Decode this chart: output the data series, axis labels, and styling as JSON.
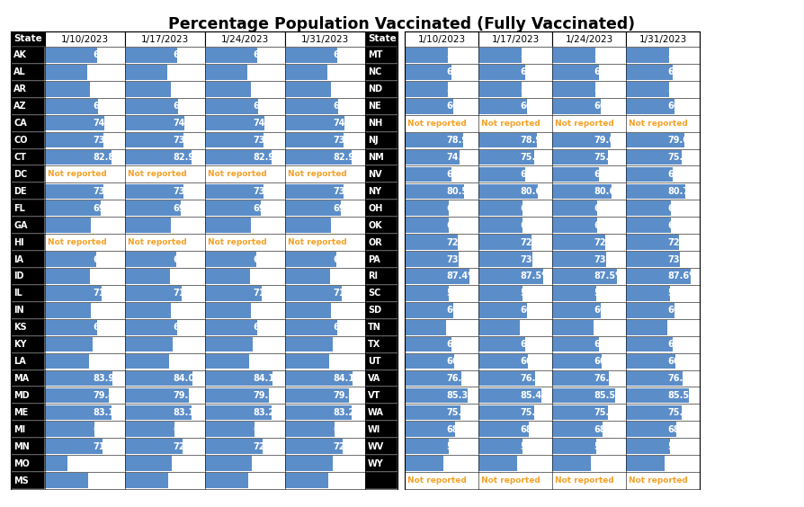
{
  "title": "Percentage Population Vaccinated (Fully Vaccinated)",
  "columns": [
    "1/10/2023",
    "1/17/2023",
    "1/24/2023",
    "1/31/2023"
  ],
  "left_states": [
    "AK",
    "AL",
    "AR",
    "AZ",
    "CA",
    "CO",
    "CT",
    "DC",
    "DE",
    "FL",
    "GA",
    "HI",
    "IA",
    "ID",
    "IL",
    "IN",
    "KS",
    "KY",
    "LA",
    "MA",
    "MD",
    "ME",
    "MI",
    "MN",
    "MO",
    "MS"
  ],
  "right_states": [
    "MT",
    "NC",
    "ND",
    "NE",
    "NH",
    "NJ",
    "NM",
    "NV",
    "NY",
    "OH",
    "OK",
    "OR",
    "PA",
    "RI",
    "SC",
    "SD",
    "TN",
    "TX",
    "UT",
    "VA",
    "VT",
    "WA",
    "WI",
    "WV",
    "WY",
    ""
  ],
  "left_data": [
    [
      65.0,
      65.0,
      65.0,
      65.1
    ],
    [
      53.0,
      53.1,
      53.1,
      53.1
    ],
    [
      56.7,
      56.8,
      56.8,
      56.8
    ],
    [
      65.8,
      65.9,
      65.9,
      65.9
    ],
    [
      74.4,
      74.5,
      74.5,
      74.6
    ],
    [
      73.2,
      73.3,
      73.3,
      73.4
    ],
    [
      82.8,
      82.9,
      82.9,
      82.9
    ],
    [
      null,
      null,
      null,
      null
    ],
    [
      73.1,
      73.1,
      73.2,
      73.2
    ],
    [
      69.2,
      69.3,
      69.3,
      69.3
    ],
    [
      57.1,
      57.1,
      57.2,
      57.2
    ],
    [
      null,
      null,
      null,
      null
    ],
    [
      64.2,
      64.2,
      64.3,
      64.3
    ],
    [
      56.3,
      56.3,
      56.4,
      56.4
    ],
    [
      71.0,
      71.1,
      71.1,
      71.1
    ],
    [
      57.6,
      57.6,
      57.7,
      57.7
    ],
    [
      65.0,
      65.1,
      65.2,
      65.2
    ],
    [
      59.5,
      59.5,
      59.5,
      59.6
    ],
    [
      54.9,
      54.9,
      55.0,
      55.0
    ],
    [
      83.9,
      84.0,
      84.1,
      84.1
    ],
    [
      79.4,
      79.5,
      79.6,
      79.6
    ],
    [
      83.1,
      83.1,
      83.2,
      83.2
    ],
    [
      62.2,
      62.2,
      62.2,
      62.3
    ],
    [
      71.9,
      72.0,
      72.0,
      72.0
    ],
    [
      27.8,
      58.9,
      58.9,
      59.0
    ],
    [
      53.6,
      53.6,
      53.6,
      53.6
    ]
  ],
  "right_data": [
    [
      59.0,
      59.0,
      59.1,
      59.1
    ],
    [
      63.3,
      63.3,
      63.3,
      63.3
    ],
    [
      58.4,
      58.5,
      58.5,
      58.6
    ],
    [
      66.1,
      66.1,
      66.1,
      66.2
    ],
    [
      null,
      null,
      null,
      null
    ],
    [
      78.9,
      78.9,
      79.0,
      79.0
    ],
    [
      74.9,
      75.0,
      75.0,
      75.1
    ],
    [
      63.6,
      63.6,
      63.6,
      63.6
    ],
    [
      80.5,
      80.6,
      80.6,
      80.7
    ],
    [
      60.3,
      60.3,
      60.4,
      60.4
    ],
    [
      60.3,
      60.3,
      60.4,
      60.4
    ],
    [
      72.2,
      72.2,
      72.2,
      72.3
    ],
    [
      73.0,
      73.1,
      73.2,
      73.2
    ],
    [
      87.4,
      87.5,
      87.5,
      87.6
    ],
    [
      59.7,
      59.8,
      59.8,
      59.8
    ],
    [
      66.0,
      66.0,
      66.1,
      66.2
    ],
    [
      56.2,
      56.2,
      56.2,
      56.2
    ],
    [
      63.1,
      63.1,
      63.1,
      63.2
    ],
    [
      66.5,
      66.5,
      66.6,
      66.6
    ],
    [
      76.4,
      76.4,
      76.5,
      76.5
    ],
    [
      85.3,
      85.4,
      85.5,
      85.5
    ],
    [
      75.9,
      75.8,
      75.9,
      75.9
    ],
    [
      68.0,
      68.0,
      68.1,
      68.1
    ],
    [
      59.6,
      59.6,
      59.6,
      59.6
    ],
    [
      52.9,
      53.0,
      53.0,
      53.0
    ],
    [
      null,
      null,
      null,
      null
    ]
  ],
  "bar_color": "#5B8DC9",
  "not_reported_color": "#F4A228",
  "title_fontsize": 12.5,
  "header_fontsize": 7.5,
  "cell_fontsize": 7.0,
  "state_fontsize": 7.0
}
